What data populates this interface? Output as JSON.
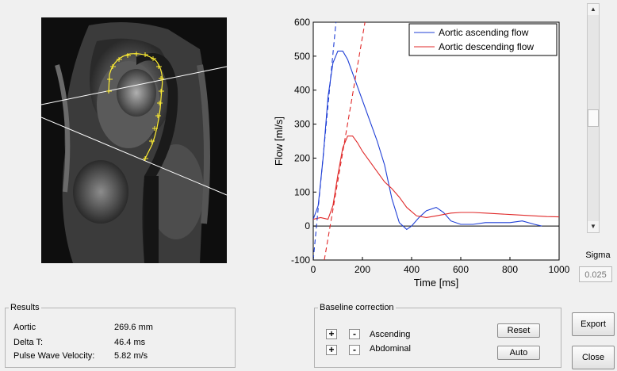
{
  "sigma": {
    "label": "Sigma",
    "value": "0.025"
  },
  "results": {
    "title": "Results",
    "rows": [
      {
        "label": "Aortic",
        "value": "269.6 mm"
      },
      {
        "label": "Delta T:",
        "value": "46.4 ms"
      },
      {
        "label": "Pulse Wave Velocity:",
        "value": "5.82 m/s"
      }
    ]
  },
  "baseline": {
    "title": "Baseline correction",
    "plus": "+",
    "minus": "-",
    "ascending_label": "Ascending",
    "abdominal_label": "Abdominal",
    "reset_label": "Reset",
    "auto_label": "Auto"
  },
  "buttons": {
    "export_label": "Export",
    "close_label": "Close"
  },
  "scrollbar": {
    "up_arrow": "▲",
    "down_arrow": "▼"
  },
  "chart_data": {
    "type": "line",
    "xlabel": "Time [ms]",
    "ylabel": "Flow [ml/s]",
    "xlim": [
      0,
      1000
    ],
    "ylim": [
      -100,
      600
    ],
    "xticks": [
      0,
      200,
      400,
      600,
      800,
      1000
    ],
    "yticks": [
      -100,
      0,
      100,
      200,
      300,
      400,
      500,
      600
    ],
    "legend_position": "top-right",
    "grid": false,
    "series": [
      {
        "name": "Aortic ascending flow",
        "color": "#1f3fd6",
        "x": [
          0,
          20,
          40,
          60,
          80,
          100,
          120,
          140,
          160,
          180,
          200,
          230,
          260,
          290,
          320,
          350,
          380,
          400,
          430,
          460,
          500,
          530,
          560,
          600,
          650,
          700,
          750,
          800,
          850,
          900,
          930
        ],
        "y": [
          20,
          60,
          200,
          380,
          480,
          515,
          515,
          490,
          450,
          410,
          370,
          310,
          250,
          180,
          80,
          10,
          -10,
          0,
          25,
          45,
          55,
          40,
          15,
          5,
          5,
          10,
          10,
          10,
          15,
          5,
          0
        ]
      },
      {
        "name": "Aortic descending flow",
        "color": "#e02a2a",
        "x": [
          0,
          30,
          60,
          80,
          100,
          120,
          140,
          160,
          180,
          200,
          230,
          260,
          290,
          320,
          350,
          380,
          420,
          460,
          500,
          560,
          600,
          650,
          700,
          750,
          800,
          850,
          900,
          950,
          1000
        ],
        "y": [
          20,
          25,
          20,
          60,
          150,
          230,
          265,
          265,
          245,
          220,
          190,
          160,
          130,
          110,
          85,
          55,
          30,
          25,
          30,
          38,
          40,
          40,
          38,
          36,
          34,
          32,
          30,
          28,
          27
        ]
      },
      {
        "name": "",
        "color": "#1f3fd6",
        "dashed": true,
        "x": [
          0,
          95
        ],
        "y": [
          -100,
          620
        ]
      },
      {
        "name": "",
        "color": "#e02a2a",
        "dashed": true,
        "x": [
          45,
          215
        ],
        "y": [
          -100,
          620
        ]
      }
    ]
  }
}
